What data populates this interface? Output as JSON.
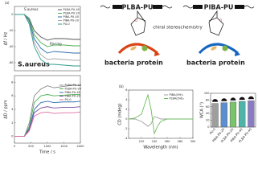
{
  "chart_data": [
    {
      "type": "line",
      "panel_label": "(a)",
      "ylabel": "Δf / Hz",
      "annotations": [
        "S.aureus",
        "Rinsing",
        "S.aureus"
      ],
      "x": [
        0,
        300,
        450,
        600,
        800,
        1000,
        1200,
        1500,
        1800,
        2000
      ],
      "xlim": [
        0,
        2000
      ],
      "ylim": [
        -70,
        10
      ],
      "yticks": [
        -60,
        -40,
        -20,
        0
      ],
      "legend": "upper right",
      "series": [
        {
          "name": "PLBA-PU-40",
          "color": "#555555",
          "values": [
            0,
            0,
            -5,
            -20,
            -28,
            -32,
            -30,
            -30,
            -31,
            -31
          ]
        },
        {
          "name": "PLBA-PU-20",
          "color": "#4caf50",
          "values": [
            0,
            0,
            -6,
            -25,
            -35,
            -40,
            -38,
            -38,
            -39,
            -39
          ]
        },
        {
          "name": "PIBA-PU-40",
          "color": "#2f6fb0",
          "values": [
            0,
            0,
            -8,
            -30,
            -42,
            -48,
            -46,
            -47,
            -48,
            -48
          ]
        },
        {
          "name": "PIBA-PU-20",
          "color": "#a8a8a8",
          "values": [
            0,
            0,
            -10,
            -35,
            -50,
            -56,
            -55,
            -56,
            -57,
            -57
          ]
        },
        {
          "name": "PU-0",
          "color": "#2a9d8f",
          "values": [
            0,
            0,
            -12,
            -40,
            -56,
            -62,
            -62,
            -63,
            -64,
            -64
          ]
        }
      ]
    },
    {
      "type": "line",
      "ylabel": "ΔD / ppm",
      "xlabel": "Time / s",
      "x": [
        0,
        300,
        450,
        600,
        800,
        1000,
        1200,
        1500,
        1800,
        2000
      ],
      "xlim": [
        0,
        2000
      ],
      "xticks": [
        0,
        500,
        1000,
        1500,
        2000
      ],
      "ylim": [
        -1,
        9
      ],
      "yticks": [
        0,
        2,
        4,
        6,
        8
      ],
      "legend": "upper right",
      "series": [
        {
          "name": "PLBA-PU-40",
          "color": "#8c8c8c",
          "values": [
            0,
            0,
            2,
            6,
            7,
            7.5,
            7.2,
            7.4,
            7.6,
            7.5
          ]
        },
        {
          "name": "PLBA-PU-20",
          "color": "#4caf50",
          "values": [
            0,
            0,
            1.5,
            5,
            6,
            6.2,
            6,
            6.1,
            6.2,
            6.2
          ]
        },
        {
          "name": "PIBA-PU-40",
          "color": "#2f6fb0",
          "values": [
            0,
            0,
            1.2,
            4,
            5,
            5.2,
            5,
            5.1,
            5.1,
            5.2
          ]
        },
        {
          "name": "PIBA-PU-20",
          "color": "#7b4fa0",
          "values": [
            0,
            0,
            1,
            3.5,
            4.2,
            4.4,
            4.2,
            4.3,
            4.3,
            4.4
          ]
        },
        {
          "name": "PU-0",
          "color": "#e06c9f",
          "values": [
            0,
            0,
            0.8,
            3,
            3.5,
            3.6,
            3.4,
            3.5,
            3.5,
            3.6
          ]
        }
      ]
    },
    {
      "type": "line",
      "panel_label": "(b)",
      "ylabel": "CD (mdeg)",
      "xlabel": "Wavelength (nm)",
      "x": [
        200,
        210,
        220,
        225,
        230,
        235,
        240,
        245,
        250,
        260,
        280,
        300
      ],
      "xlim": [
        200,
        300
      ],
      "xticks": [
        220,
        240,
        260,
        280,
        300
      ],
      "ylim": [
        -4,
        6
      ],
      "yticks": [
        -4,
        -2,
        0,
        2,
        4,
        6
      ],
      "legend": "upper right",
      "series": [
        {
          "name": "PIBA(OH)₂",
          "color": "#a0a0a0",
          "values": [
            0,
            0,
            -0.5,
            -1,
            -1.5,
            -1,
            0.5,
            0.3,
            0,
            0,
            0,
            0
          ]
        },
        {
          "name": "PLBA(OH)₂",
          "color": "#6dbb5c",
          "values": [
            0,
            0.2,
            1,
            3,
            5,
            2,
            -3,
            -1.5,
            -0.5,
            0,
            0,
            0
          ]
        }
      ]
    },
    {
      "type": "bar",
      "ylabel": "WCA (°)",
      "categories": [
        "PU-0",
        "PIBA-PU-20",
        "PLBA-PU-20",
        "PIBA-PU-40",
        "PLBA-PU-40"
      ],
      "values": [
        70,
        72,
        74,
        76,
        78
      ],
      "colors": [
        "#9e9e9e",
        "#5b8fd0",
        "#7cc36e",
        "#4fb3a9",
        "#8a7cc4"
      ],
      "ylim": [
        0,
        100
      ],
      "yticks": [
        0,
        20,
        40,
        60,
        80,
        100
      ]
    }
  ],
  "diagram": {
    "left_polymer": "PLBA-PU",
    "right_polymer": "PIBA-PU",
    "center": "chiral stereochemistry",
    "left_bacteria": "bacteria",
    "left_protein": "protein",
    "right_bacteria": "bacteria",
    "right_protein": "protein"
  }
}
